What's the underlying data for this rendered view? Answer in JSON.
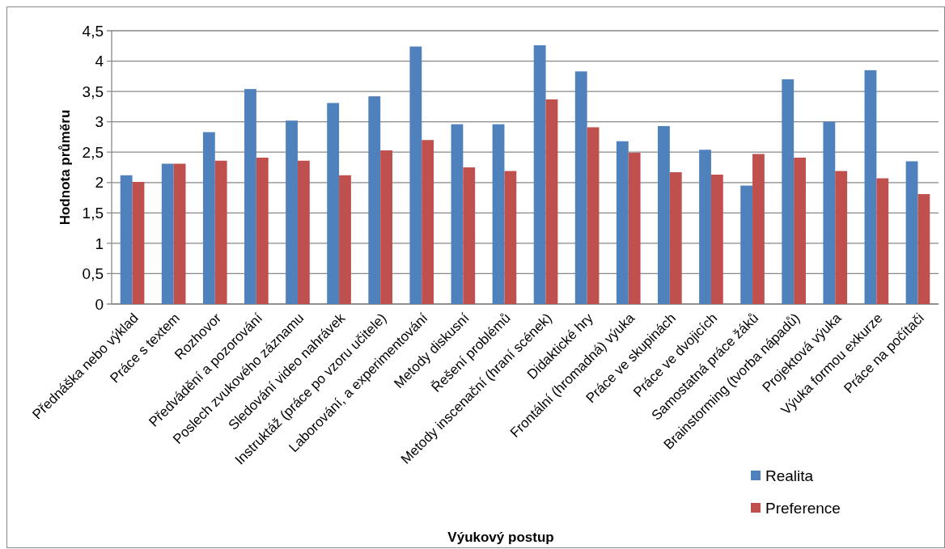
{
  "chart_data": {
    "type": "bar",
    "xlabel": "Výukový postup",
    "ylabel": "Hodnota průměru",
    "categories": [
      "Přednáška nebo výklad",
      "Práce s textem",
      "Rozhovor",
      "Předvádění a pozorování",
      "Poslech zvukového záznamu",
      "Sledování video nahrávek",
      "Instruktáž (práce po vzoru učitele)",
      "Laborování, a experimentování",
      "Metody diskusní",
      "Řešení problémů",
      "Metody inscenační (hraní scének)",
      "Didaktické hry",
      "Frontální (hromadná) výuka",
      "Práce ve skupinách",
      "Práce ve dvojicích",
      "Samostatná práce žáků",
      "Brainstorming (tvorba nápadů)",
      "Projektová výuka",
      "Výuka formou exkurze",
      "Práce na počítači"
    ],
    "series": [
      {
        "name": "Realita",
        "color": "#4f81bd",
        "values": [
          2.12,
          2.31,
          2.83,
          3.54,
          3.02,
          3.31,
          3.42,
          4.24,
          2.96,
          2.96,
          4.26,
          3.83,
          2.68,
          2.93,
          2.54,
          1.95,
          3.7,
          3.0,
          3.85,
          2.35
        ]
      },
      {
        "name": "Preference",
        "color": "#c0504d",
        "values": [
          2.01,
          2.31,
          2.36,
          2.41,
          2.36,
          2.12,
          2.53,
          2.7,
          2.25,
          2.19,
          3.37,
          2.91,
          2.49,
          2.17,
          2.13,
          2.47,
          2.41,
          2.19,
          2.07,
          1.81
        ]
      }
    ],
    "ylim": [
      0,
      4.5
    ],
    "yticks": [
      0,
      {
        "value": 0.5,
        "label": "0,5"
      },
      1,
      {
        "value": 1.5,
        "label": "1,5"
      },
      2,
      {
        "value": 2.5,
        "label": "2,5"
      },
      3,
      {
        "value": 3.5,
        "label": "3,5"
      },
      4,
      {
        "value": 4.5,
        "label": "4,5"
      }
    ],
    "grid": "y",
    "legend": "bottom right"
  }
}
